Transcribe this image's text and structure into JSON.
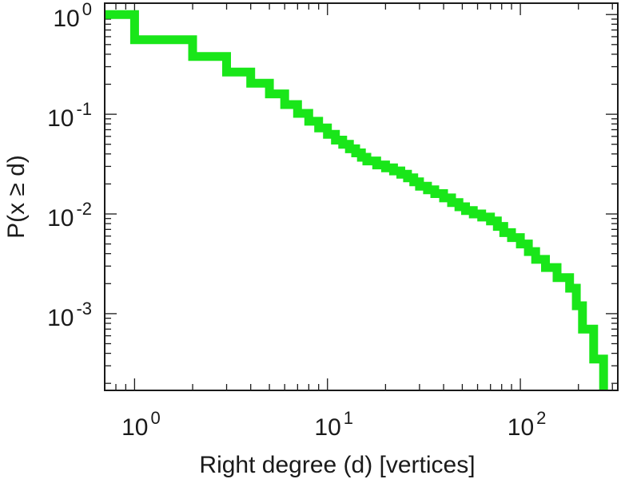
{
  "chart_data": {
    "type": "line",
    "title": "",
    "xlabel": "Right degree (d) [vertices]",
    "ylabel": "P(x ≥ d)",
    "x_scale": "log",
    "y_scale": "log",
    "xlim": [
      0.7,
      320
    ],
    "ylim": [
      0.00017,
      1.3
    ],
    "x_ticks": [
      {
        "value": 1,
        "base": "10",
        "exp": "0"
      },
      {
        "value": 10,
        "base": "10",
        "exp": "1"
      },
      {
        "value": 100,
        "base": "10",
        "exp": "2"
      }
    ],
    "y_ticks": [
      {
        "value": 1,
        "base": "10",
        "exp": "0"
      },
      {
        "value": 0.1,
        "base": "10",
        "exp": "-1"
      },
      {
        "value": 0.01,
        "base": "10",
        "exp": "-2"
      },
      {
        "value": 0.001,
        "base": "10",
        "exp": "-3"
      }
    ],
    "grid": false,
    "legend": "none",
    "series": [
      {
        "color": "#19e619",
        "step": true,
        "points": [
          [
            0.7,
            1.0
          ],
          [
            1,
            1.0
          ],
          [
            1,
            0.56
          ],
          [
            2,
            0.56
          ],
          [
            2,
            0.38
          ],
          [
            3,
            0.38
          ],
          [
            3,
            0.265
          ],
          [
            4,
            0.265
          ],
          [
            4,
            0.205
          ],
          [
            5,
            0.205
          ],
          [
            5,
            0.16
          ],
          [
            6,
            0.16
          ],
          [
            6,
            0.125
          ],
          [
            7,
            0.125
          ],
          [
            7,
            0.102
          ],
          [
            8,
            0.102
          ],
          [
            8,
            0.085
          ],
          [
            9,
            0.085
          ],
          [
            9,
            0.073
          ],
          [
            10,
            0.073
          ],
          [
            10,
            0.063
          ],
          [
            11,
            0.063
          ],
          [
            11,
            0.055
          ],
          [
            12,
            0.055
          ],
          [
            12,
            0.05
          ],
          [
            13,
            0.05
          ],
          [
            13,
            0.045
          ],
          [
            14,
            0.045
          ],
          [
            14,
            0.041
          ],
          [
            15,
            0.041
          ],
          [
            15,
            0.037
          ],
          [
            16,
            0.037
          ],
          [
            16,
            0.034
          ],
          [
            18,
            0.034
          ],
          [
            18,
            0.031
          ],
          [
            20,
            0.031
          ],
          [
            20,
            0.029
          ],
          [
            22,
            0.029
          ],
          [
            22,
            0.027
          ],
          [
            24,
            0.027
          ],
          [
            24,
            0.025
          ],
          [
            26,
            0.025
          ],
          [
            26,
            0.023
          ],
          [
            28,
            0.023
          ],
          [
            28,
            0.021
          ],
          [
            30,
            0.021
          ],
          [
            30,
            0.019
          ],
          [
            33,
            0.019
          ],
          [
            33,
            0.0175
          ],
          [
            36,
            0.0175
          ],
          [
            36,
            0.016
          ],
          [
            40,
            0.016
          ],
          [
            40,
            0.0145
          ],
          [
            44,
            0.0145
          ],
          [
            44,
            0.013
          ],
          [
            48,
            0.013
          ],
          [
            48,
            0.0118
          ],
          [
            52,
            0.0118
          ],
          [
            52,
            0.0108
          ],
          [
            57,
            0.0108
          ],
          [
            57,
            0.01
          ],
          [
            63,
            0.01
          ],
          [
            63,
            0.0093
          ],
          [
            70,
            0.0093
          ],
          [
            70,
            0.0085
          ],
          [
            76,
            0.0085
          ],
          [
            76,
            0.0075
          ],
          [
            82,
            0.0075
          ],
          [
            82,
            0.0065
          ],
          [
            90,
            0.0065
          ],
          [
            90,
            0.0058
          ],
          [
            100,
            0.0058
          ],
          [
            100,
            0.005
          ],
          [
            110,
            0.005
          ],
          [
            110,
            0.0042
          ],
          [
            120,
            0.0042
          ],
          [
            120,
            0.0035
          ],
          [
            135,
            0.0035
          ],
          [
            135,
            0.0029
          ],
          [
            155,
            0.0029
          ],
          [
            155,
            0.0023
          ],
          [
            180,
            0.0023
          ],
          [
            180,
            0.0018
          ],
          [
            195,
            0.0018
          ],
          [
            195,
            0.0012
          ],
          [
            210,
            0.0012
          ],
          [
            210,
            0.0007
          ],
          [
            240,
            0.0007
          ],
          [
            240,
            0.00035
          ],
          [
            270,
            0.00035
          ],
          [
            270,
            0.00017
          ]
        ]
      }
    ]
  }
}
